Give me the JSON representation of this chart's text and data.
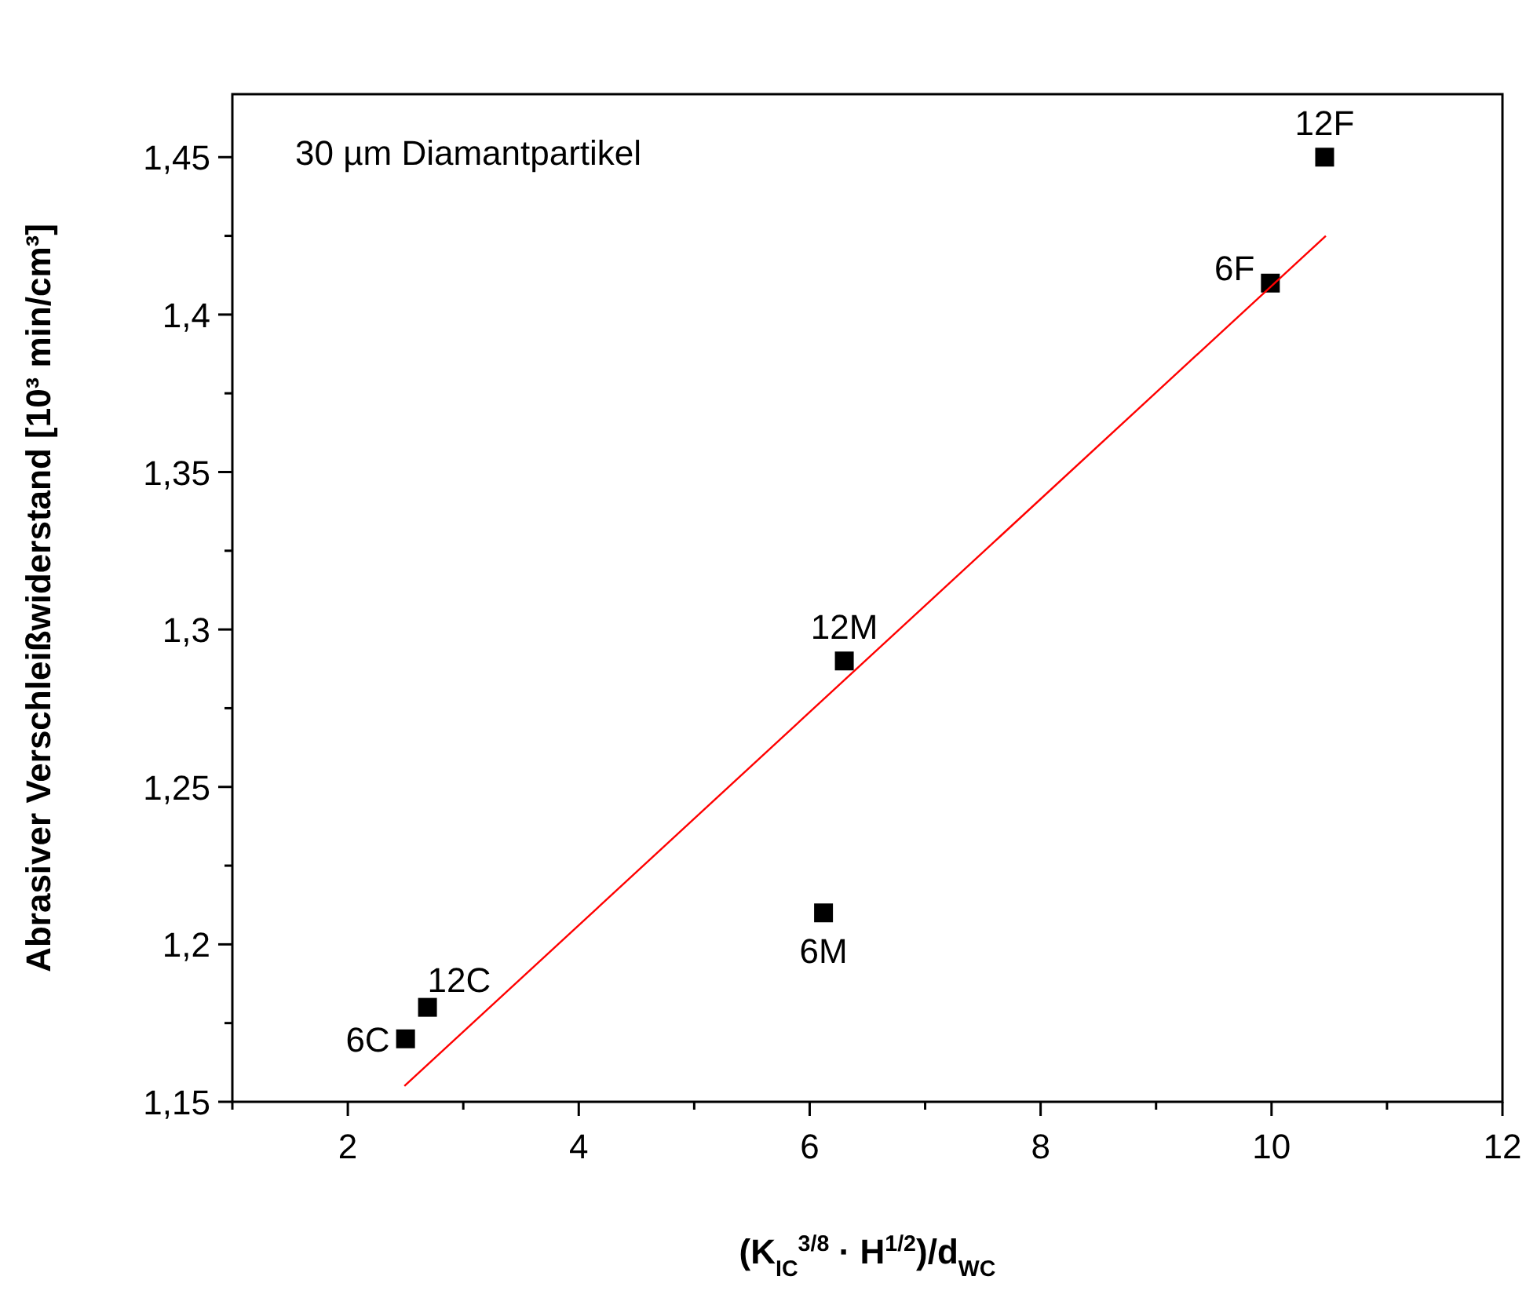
{
  "chart_data": {
    "type": "scatter",
    "xlabel": "(K$_{IC}$$^{3/8}$ · H$^{1/2}$)/d$_{WC}$",
    "ylabel": "Abrasiver Verschleißwiderstand [10³ min/cm³]",
    "annotations": [
      "30 µm Diamantpartikel",
      {
        "text": "6C",
        "x": 2.5,
        "y": 1.17
      },
      {
        "text": "12C",
        "x": 2.69,
        "y": 1.18
      },
      {
        "text": "6M",
        "x": 6.12,
        "y": 1.21
      },
      {
        "text": "12M",
        "x": 6.3,
        "y": 1.29
      },
      {
        "text": "6F",
        "x": 9.99,
        "y": 1.41
      },
      {
        "text": "12F",
        "x": 10.46,
        "y": 1.45
      }
    ],
    "xlim": [
      1,
      12
    ],
    "xticks": [
      {
        "value": 1,
        "label": null
      },
      2,
      {
        "value": 3,
        "label": null
      },
      4,
      {
        "value": 5,
        "label": null
      },
      6,
      {
        "value": 7,
        "label": null
      },
      8,
      {
        "value": 9,
        "label": null
      },
      10,
      {
        "value": 11,
        "label": null
      },
      12
    ],
    "ylim": [
      1.15,
      1.47
    ],
    "yticks": [
      {
        "value": 1.15,
        "label": "1,15"
      },
      {
        "value": 1.175,
        "label": null
      },
      {
        "value": 1.2,
        "label": "1,2"
      },
      {
        "value": 1.225,
        "label": null
      },
      {
        "value": 1.25,
        "label": "1,25"
      },
      {
        "value": 1.275,
        "label": null
      },
      {
        "value": 1.3,
        "label": "1,3"
      },
      {
        "value": 1.325,
        "label": null
      },
      {
        "value": 1.35,
        "label": "1,35"
      },
      {
        "value": 1.375,
        "label": null
      },
      {
        "value": 1.4,
        "label": "1,4"
      },
      {
        "value": 1.425,
        "label": null
      },
      {
        "value": 1.45,
        "label": "1,45"
      }
    ],
    "grid": false,
    "series": [
      {
        "type": "scatter",
        "color": "#000000",
        "marker": "square",
        "x": [
          2.5,
          2.69,
          6.12,
          6.3,
          9.99,
          10.46
        ],
        "values": [
          1.17,
          1.18,
          1.21,
          1.29,
          1.41,
          1.45
        ]
      },
      {
        "type": "line",
        "marker": "none",
        "color": "#ff0000",
        "x": [
          2.49,
          10.47
        ],
        "values": [
          1.155,
          1.425
        ]
      }
    ]
  }
}
